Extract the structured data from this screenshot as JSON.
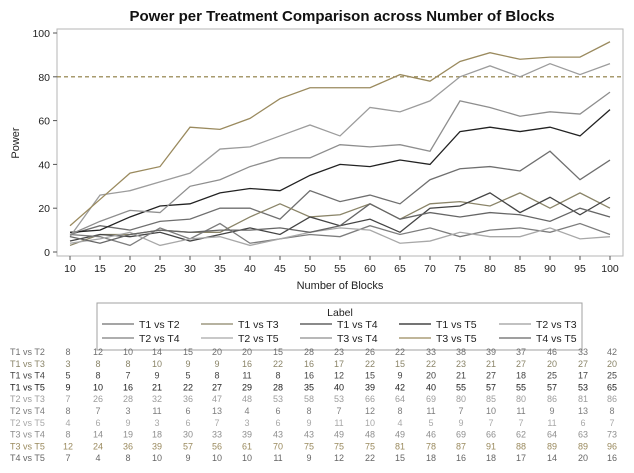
{
  "chart_data": {
    "type": "line",
    "title": "Power per Treatment Comparison across Number of Blocks",
    "xlabel": "Number of Blocks",
    "ylabel": "Power",
    "xlim": [
      10,
      100
    ],
    "ylim": [
      0,
      100
    ],
    "x": [
      10,
      15,
      20,
      25,
      30,
      35,
      40,
      45,
      50,
      55,
      60,
      65,
      70,
      75,
      80,
      85,
      90,
      95,
      100
    ],
    "x_ticks": [
      10,
      15,
      20,
      25,
      30,
      35,
      40,
      45,
      50,
      55,
      60,
      65,
      70,
      75,
      80,
      85,
      90,
      95,
      100
    ],
    "y_ticks": [
      0,
      20,
      40,
      60,
      80,
      100
    ],
    "reference_line": {
      "y": 80,
      "style": "dashed",
      "color": "#8b7a3e"
    },
    "grid": false,
    "legend": {
      "title": "Label",
      "placement": "bottom"
    },
    "series": [
      {
        "name": "T1 vs T2",
        "color": "#6f6f6f",
        "dash": "solid",
        "values": [
          8,
          12,
          10,
          14,
          15,
          20,
          20,
          15,
          28,
          23,
          26,
          22,
          33,
          38,
          39,
          37,
          46,
          33,
          42
        ]
      },
      {
        "name": "T1 vs T3",
        "color": "#8a8468",
        "dash": "solid",
        "values": [
          3,
          8,
          8,
          10,
          9,
          9,
          16,
          22,
          16,
          17,
          22,
          15,
          22,
          23,
          21,
          27,
          20,
          27,
          20
        ]
      },
      {
        "name": "T1 vs T4",
        "color": "#444444",
        "dash": "solid",
        "values": [
          5,
          8,
          7,
          9,
          5,
          8,
          11,
          8,
          16,
          12,
          15,
          9,
          20,
          21,
          27,
          18,
          25,
          17,
          25
        ]
      },
      {
        "name": "T1 vs T5",
        "color": "#222222",
        "dash": "solid",
        "values": [
          9,
          10,
          16,
          21,
          22,
          27,
          29,
          28,
          35,
          40,
          39,
          42,
          40,
          55,
          57,
          55,
          57,
          53,
          65
        ]
      },
      {
        "name": "T2 vs T3",
        "color": "#9c9c9c",
        "dash": "solid",
        "values": [
          7,
          26,
          28,
          32,
          36,
          47,
          48,
          53,
          58,
          53,
          66,
          64,
          69,
          80,
          85,
          80,
          86,
          81,
          86
        ]
      },
      {
        "name": "T2 vs T4",
        "color": "#7d7d7d",
        "dash": "solid",
        "values": [
          8,
          7,
          3,
          11,
          6,
          13,
          4,
          6,
          8,
          7,
          12,
          8,
          11,
          7,
          10,
          11,
          9,
          13,
          8
        ]
      },
      {
        "name": "T2 vs T5",
        "color": "#a8a8a8",
        "dash": "solid",
        "values": [
          4,
          6,
          9,
          3,
          6,
          7,
          3,
          6,
          9,
          11,
          10,
          4,
          5,
          9,
          7,
          7,
          11,
          6,
          7
        ]
      },
      {
        "name": "T3 vs T4",
        "color": "#8e8e8e",
        "dash": "solid",
        "values": [
          8,
          14,
          19,
          18,
          30,
          33,
          39,
          43,
          43,
          49,
          48,
          49,
          46,
          69,
          66,
          62,
          64,
          63,
          73
        ]
      },
      {
        "name": "T3 vs T5",
        "color": "#9a8a5e",
        "dash": "solid",
        "values": [
          12,
          24,
          36,
          39,
          57,
          56,
          61,
          70,
          75,
          75,
          75,
          81,
          78,
          87,
          91,
          88,
          89,
          89,
          96
        ]
      },
      {
        "name": "T4 vs T5",
        "color": "#666666",
        "dash": "solid",
        "values": [
          7,
          4,
          8,
          10,
          9,
          10,
          10,
          11,
          9,
          12,
          22,
          15,
          18,
          16,
          18,
          17,
          14,
          20,
          16
        ]
      }
    ],
    "table": {
      "rows": [
        {
          "label": "T1 vs T2",
          "values": [
            "8",
            "12",
            "10",
            "14",
            "15",
            "20",
            "20",
            "15",
            "28",
            "23",
            "26",
            "22",
            "33",
            "38",
            "39",
            "37",
            "46",
            "33",
            "42"
          ]
        },
        {
          "label": "T1 vs T3",
          "values": [
            "3",
            "8",
            "8",
            "10",
            "9",
            "9",
            "16",
            "22",
            "16",
            "17",
            "22",
            "15",
            "22",
            "23",
            "21",
            "27",
            "20",
            "27",
            "20"
          ]
        },
        {
          "label": "T1 vs T4",
          "values": [
            "5",
            "8",
            "7",
            "9",
            "5",
            "8",
            "11",
            "8",
            "16",
            "12",
            "15",
            "9",
            "20",
            "21",
            "27",
            "18",
            "25",
            "17",
            "25"
          ]
        },
        {
          "label": "T1 vs T5",
          "values": [
            "9",
            "10",
            "16",
            "21",
            "22",
            "27",
            "29",
            "28",
            "35",
            "40",
            "39",
            "42",
            "40",
            "55",
            "57",
            "55",
            "57",
            "53",
            "65"
          ]
        },
        {
          "label": "T2 vs T3",
          "values": [
            "7",
            "26",
            "28",
            "32",
            "36",
            "47",
            "48",
            "53",
            "58",
            "53",
            "66",
            "64",
            "69",
            "80",
            "85",
            "80",
            "86",
            "81",
            "86"
          ]
        },
        {
          "label": "T2 vs T4",
          "values": [
            "8",
            "7",
            "3",
            "11",
            "6",
            "13",
            "4",
            "6",
            "8",
            "7",
            "12",
            "8",
            "11",
            "7",
            "10",
            "11",
            "9",
            "13",
            "8"
          ]
        },
        {
          "label": "T2 vs T5",
          "values": [
            "4",
            "6",
            "9",
            "3",
            "6",
            "7",
            "3",
            "6",
            "9",
            "11",
            "10",
            "4",
            "5",
            "9",
            "7",
            "7",
            "11",
            "6",
            "7"
          ]
        },
        {
          "label": "T3 vs T4",
          "values": [
            "8",
            "14",
            "19",
            "18",
            "30",
            "33",
            "39",
            "43",
            "43",
            "49",
            "48",
            "49",
            "46",
            "69",
            "66",
            "62",
            "64",
            "63",
            "73"
          ]
        },
        {
          "label": "T3 vs T5",
          "values": [
            "12",
            "24",
            "36",
            "39",
            "57",
            "56",
            "61",
            "70",
            "75",
            "75",
            "75",
            "81",
            "78",
            "87",
            "91",
            "88",
            "89",
            "89",
            "96"
          ]
        },
        {
          "label": "T4 vs T5",
          "values": [
            "7",
            "4",
            "8",
            "10",
            "9",
            "10",
            "10",
            "11",
            "9",
            "12",
            "22",
            "15",
            "18",
            "16",
            "18",
            "17",
            "14",
            "20",
            "16"
          ]
        }
      ]
    }
  }
}
